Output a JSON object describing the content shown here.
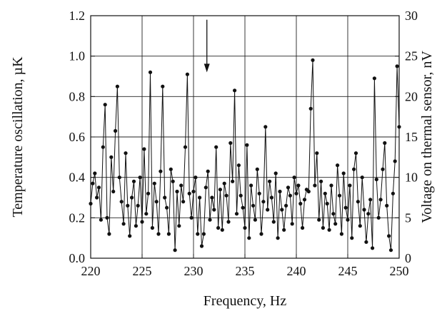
{
  "chart_data": {
    "type": "line",
    "title": "",
    "xlabel": "Frequency, Hz",
    "ylabel": "Temperature oscillation, µK",
    "ylabel_right": "Voltage on thermal sensor, nV",
    "xlim": [
      220,
      250
    ],
    "ylim": [
      0,
      1.2
    ],
    "ylim_right": [
      0,
      30
    ],
    "xticks": [
      "220",
      "225",
      "230",
      "235",
      "240",
      "245",
      "250"
    ],
    "yticks": [
      "0.0",
      "0.2",
      "0.4",
      "0.6",
      "0.8",
      "1.0",
      "1.2"
    ],
    "yticks_right": [
      "0",
      "5",
      "10",
      "15",
      "20",
      "25",
      "30"
    ],
    "grid": true,
    "annotation": {
      "type": "arrow-down",
      "x": 231.3,
      "y_from": 1.18,
      "y_to": 0.92
    },
    "series": [
      {
        "marker": "circle",
        "x": [
          220.0,
          220.2,
          220.4,
          220.6,
          220.8,
          221.0,
          221.2,
          221.4,
          221.6,
          221.8,
          222.0,
          222.2,
          222.4,
          222.6,
          222.8,
          223.0,
          223.2,
          223.4,
          223.6,
          223.8,
          224.0,
          224.2,
          224.4,
          224.6,
          224.8,
          225.0,
          225.2,
          225.4,
          225.6,
          225.8,
          226.0,
          226.2,
          226.4,
          226.6,
          226.8,
          227.0,
          227.2,
          227.4,
          227.6,
          227.8,
          228.0,
          228.2,
          228.4,
          228.6,
          228.8,
          229.0,
          229.2,
          229.4,
          229.6,
          229.8,
          230.0,
          230.2,
          230.4,
          230.6,
          230.8,
          231.0,
          231.2,
          231.4,
          231.6,
          231.8,
          232.0,
          232.2,
          232.4,
          232.6,
          232.8,
          233.0,
          233.2,
          233.4,
          233.6,
          233.8,
          234.0,
          234.2,
          234.4,
          234.6,
          234.8,
          235.0,
          235.2,
          235.4,
          235.6,
          235.8,
          236.0,
          236.2,
          236.4,
          236.6,
          236.8,
          237.0,
          237.2,
          237.4,
          237.6,
          237.8,
          238.0,
          238.2,
          238.4,
          238.6,
          238.8,
          239.0,
          239.2,
          239.4,
          239.6,
          239.8,
          240.0,
          240.2,
          240.4,
          240.6,
          240.8,
          241.0,
          241.2,
          241.4,
          241.6,
          241.8,
          242.0,
          242.2,
          242.4,
          242.6,
          242.8,
          243.0,
          243.2,
          243.4,
          243.6,
          243.8,
          244.0,
          244.2,
          244.4,
          244.6,
          244.8,
          245.0,
          245.2,
          245.4,
          245.6,
          245.8,
          246.0,
          246.2,
          246.4,
          246.6,
          246.8,
          247.0,
          247.2,
          247.4,
          247.6,
          247.8,
          248.0,
          248.2,
          248.4,
          248.6,
          248.8,
          249.0,
          249.2,
          249.4,
          249.6,
          249.8,
          250.0
        ],
        "y": [
          0.27,
          0.37,
          0.42,
          0.3,
          0.35,
          0.19,
          0.55,
          0.76,
          0.2,
          0.12,
          0.5,
          0.33,
          0.63,
          0.85,
          0.4,
          0.28,
          0.17,
          0.52,
          0.26,
          0.11,
          0.3,
          0.38,
          0.16,
          0.26,
          0.4,
          0.18,
          0.54,
          0.22,
          0.32,
          0.92,
          0.15,
          0.37,
          0.28,
          0.12,
          0.43,
          0.85,
          0.3,
          0.25,
          0.12,
          0.44,
          0.38,
          0.04,
          0.33,
          0.16,
          0.36,
          0.28,
          0.55,
          0.91,
          0.32,
          0.2,
          0.33,
          0.4,
          0.12,
          0.3,
          0.06,
          0.12,
          0.35,
          0.43,
          0.19,
          0.3,
          0.24,
          0.55,
          0.15,
          0.34,
          0.14,
          0.37,
          0.31,
          0.18,
          0.57,
          0.38,
          0.83,
          0.22,
          0.46,
          0.31,
          0.25,
          0.15,
          0.56,
          0.1,
          0.36,
          0.26,
          0.19,
          0.44,
          0.32,
          0.12,
          0.28,
          0.65,
          0.24,
          0.38,
          0.3,
          0.18,
          0.42,
          0.1,
          0.33,
          0.24,
          0.14,
          0.26,
          0.35,
          0.31,
          0.17,
          0.4,
          0.32,
          0.36,
          0.27,
          0.15,
          0.29,
          0.34,
          0.33,
          0.74,
          0.98,
          0.36,
          0.52,
          0.19,
          0.38,
          0.15,
          0.32,
          0.27,
          0.14,
          0.36,
          0.22,
          0.17,
          0.46,
          0.31,
          0.12,
          0.42,
          0.25,
          0.19,
          0.36,
          0.1,
          0.44,
          0.52,
          0.28,
          0.16,
          0.4,
          0.24,
          0.08,
          0.22,
          0.29,
          0.05,
          0.89,
          0.39,
          0.2,
          0.29,
          0.44,
          0.57,
          0.26,
          0.11,
          0.04,
          0.32,
          0.48,
          0.95,
          0.65
        ]
      }
    ]
  }
}
